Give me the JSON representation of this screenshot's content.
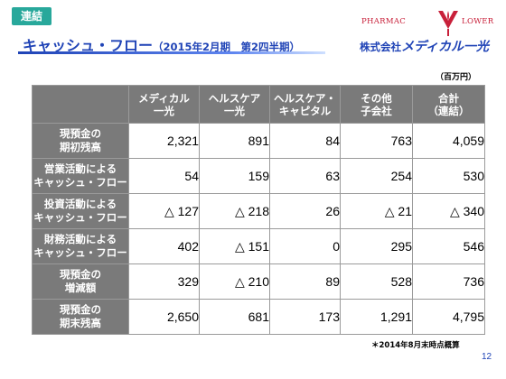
{
  "section_tag": "連結",
  "title": {
    "main": "キャッシュ・フロー",
    "sub": "（2015年2月期　第2四半期）"
  },
  "logo": {
    "text_left": "PHARMAC",
    "text_right": "LOWER",
    "mark_color": "#c8203a"
  },
  "company": {
    "prefix": "株式会社",
    "name": "メディカル一光"
  },
  "unit": "（百万円）",
  "table": {
    "columns": [
      {
        "line1": "メディカル",
        "line2": "一光"
      },
      {
        "line1": "ヘルスケア",
        "line2": "一光"
      },
      {
        "line1": "ヘルスケア・",
        "line2": "キャピタル"
      },
      {
        "line1": "その他",
        "line2": "子会社"
      },
      {
        "line1": "合計",
        "line2": "（連結）"
      }
    ],
    "rows": [
      {
        "line1": "現預金の",
        "line2": "期初残高",
        "values": [
          "2,321",
          "891",
          "84",
          "763",
          "4,059"
        ]
      },
      {
        "line1": "営業活動による",
        "line2": "キャッシュ・フロー",
        "values": [
          "54",
          "159",
          "63",
          "254",
          "530"
        ]
      },
      {
        "line1": "投資活動による",
        "line2": "キャッシュ・フロー",
        "values": [
          "△ 127",
          "△ 218",
          "26",
          "△ 21",
          "△ 340"
        ]
      },
      {
        "line1": "財務活動による",
        "line2": "キャッシュ・フロー",
        "values": [
          "402",
          "△ 151",
          "0",
          "295",
          "546"
        ]
      },
      {
        "line1": "現預金の",
        "line2": "増減額",
        "values": [
          "329",
          "△ 210",
          "89",
          "528",
          "736"
        ]
      },
      {
        "line1": "現預金の",
        "line2": "期末残高",
        "values": [
          "2,650",
          "681",
          "173",
          "1,291",
          "4,795"
        ]
      }
    ]
  },
  "footnote": "＊2014年8月末時点概算",
  "page_number": "12",
  "colors": {
    "accent": "#1f43b6",
    "tag": "#28a89b",
    "header_bg": "#7a7a7a"
  }
}
